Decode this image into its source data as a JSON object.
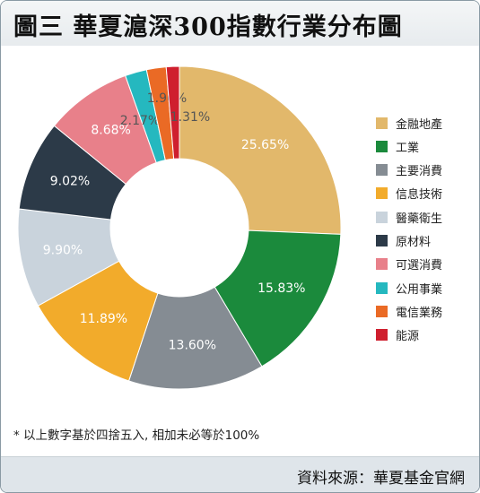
{
  "header": {
    "title": "圖三  華夏滬深300指數行業分布圖"
  },
  "chart_data": {
    "type": "pie",
    "donut": true,
    "title": "圖三  華夏滬深300指數行業分布圖",
    "categories": [
      "金融地產",
      "工業",
      "主要消費",
      "信息技術",
      "醫藥衛生",
      "原材料",
      "可選消費",
      "公用事業",
      "電信業務",
      "能源"
    ],
    "values": [
      25.65,
      15.83,
      13.6,
      11.89,
      9.9,
      9.02,
      8.68,
      2.17,
      1.96,
      1.31
    ],
    "data_labels": [
      "25.65%",
      "15.83%",
      "13.60%",
      "11.89%",
      "9.90%",
      "9.02%",
      "8.68%",
      "2.17%",
      "1.96%",
      "1.31%"
    ],
    "colors": [
      "#e2b86b",
      "#1b8a3c",
      "#858c93",
      "#f2ab2b",
      "#c9d3dc",
      "#2c3a48",
      "#e8808a",
      "#25b8bf",
      "#ea6a25",
      "#cf1f2e"
    ],
    "label_colors": [
      "#ffffff",
      "#ffffff",
      "#ffffff",
      "#ffffff",
      "#ffffff",
      "#ffffff",
      "#ffffff",
      "#555555",
      "#555555",
      "#555555"
    ],
    "legend": "right",
    "start_angle_deg": 0,
    "direction": "clockwise"
  },
  "footnote": "* 以上數字基於四捨五入, 相加未必等於100%",
  "source": "資料來源：華夏基金官網"
}
